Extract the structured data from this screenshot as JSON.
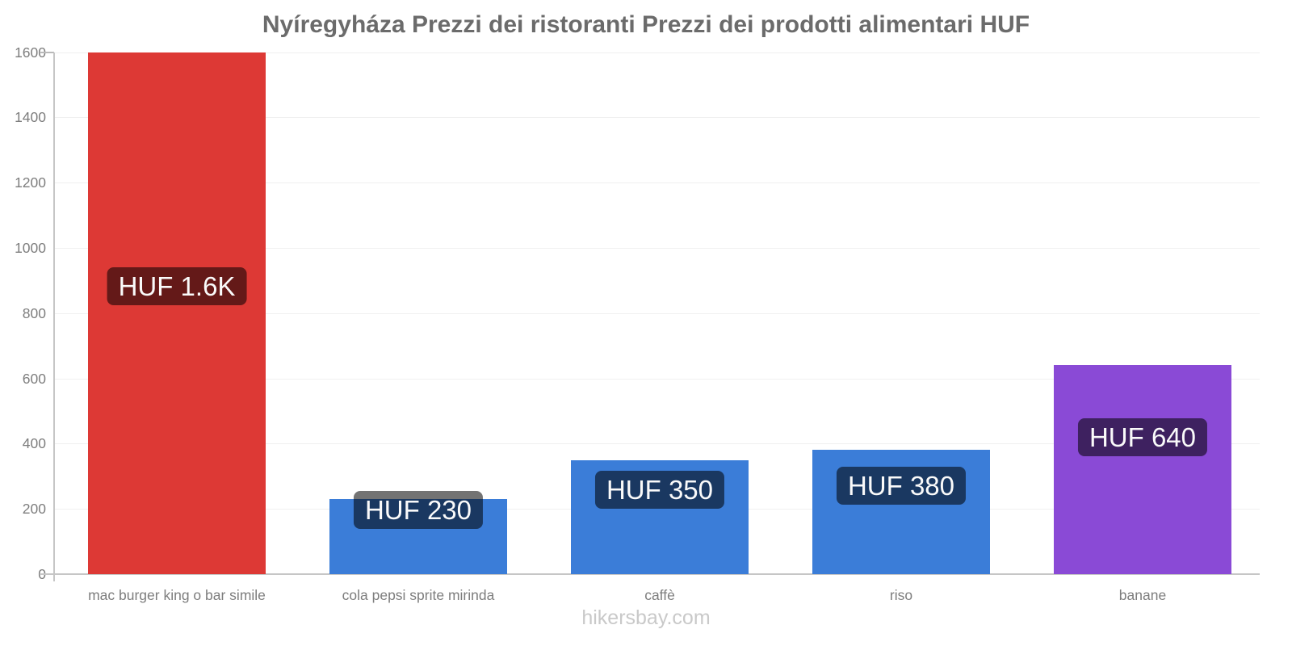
{
  "page": {
    "title": "Nyíregyháza Prezzi dei ristoranti Prezzi dei prodotti alimentari HUF",
    "footer": "hikersbay.com"
  },
  "chart_data": {
    "type": "bar",
    "title": "Nyíregyháza Prezzi dei ristoranti Prezzi dei prodotti alimentari HUF",
    "categories": [
      "mac burger king o bar simile",
      "cola pepsi sprite mirinda",
      "caffè",
      "riso",
      "banane"
    ],
    "values": [
      1600,
      230,
      350,
      380,
      640
    ],
    "value_labels": [
      "HUF 1.6K",
      "HUF 230",
      "HUF 350",
      "HUF 380",
      "HUF 640"
    ],
    "bar_colors": [
      "#dd3935",
      "#3b7dd8",
      "#3b7dd8",
      "#3b7dd8",
      "#8a4ad6"
    ],
    "currency": "HUF",
    "xlabel": "",
    "ylabel": "",
    "ylim": [
      0,
      1600
    ],
    "yticks": [
      0,
      200,
      400,
      600,
      800,
      1000,
      1200,
      1400,
      1600
    ],
    "ytick_labels": [
      "0",
      "200",
      "400",
      "600",
      "800",
      "1000",
      "1200",
      "1400",
      "1600"
    ],
    "grid": true,
    "legend": "none",
    "label_bg": "rgba(0,0,0,0.55)",
    "colors": {
      "axis": "#c6c6c6",
      "gridline": "#f0f0f0",
      "tick": "#b9b9b9",
      "axis_text": "#7d7d7d",
      "title_text": "#6b6b6b",
      "footer_text": "#c9c9c9",
      "value_label_text": "#fafafa"
    }
  }
}
